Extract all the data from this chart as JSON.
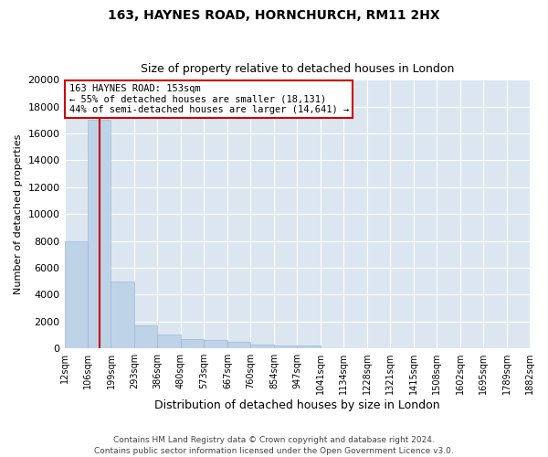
{
  "title1": "163, HAYNES ROAD, HORNCHURCH, RM11 2HX",
  "title2": "Size of property relative to detached houses in London",
  "xlabel": "Distribution of detached houses by size in London",
  "ylabel": "Number of detached properties",
  "footer": "Contains HM Land Registry data © Crown copyright and database right 2024.\nContains public sector information licensed under the Open Government Licence v3.0.",
  "property_size": 153,
  "property_label": "163 HAYNES ROAD: 153sqm",
  "annotation_line1": "← 55% of detached houses are smaller (18,131)",
  "annotation_line2": "44% of semi-detached houses are larger (14,641) →",
  "bar_color": "#bed3e8",
  "bar_edge_color": "#9ab8d8",
  "vline_color": "#cc0000",
  "annotation_box_edge": "#cc0000",
  "annotation_box_face": "#ffffff",
  "background_color": "#dce6f0",
  "bins": [
    "12sqm",
    "106sqm",
    "199sqm",
    "293sqm",
    "386sqm",
    "480sqm",
    "573sqm",
    "667sqm",
    "760sqm",
    "854sqm",
    "947sqm",
    "1041sqm",
    "1134sqm",
    "1228sqm",
    "1321sqm",
    "1415sqm",
    "1508sqm",
    "1602sqm",
    "1695sqm",
    "1789sqm",
    "1882sqm"
  ],
  "bin_edges": [
    12,
    106,
    199,
    293,
    386,
    480,
    573,
    667,
    760,
    854,
    947,
    1041,
    1134,
    1228,
    1321,
    1415,
    1508,
    1602,
    1695,
    1789,
    1882
  ],
  "values": [
    8000,
    17000,
    5000,
    1700,
    1000,
    700,
    600,
    500,
    300,
    200,
    200,
    0,
    0,
    0,
    0,
    0,
    0,
    0,
    0,
    0
  ],
  "ylim": [
    0,
    20000
  ],
  "yticks": [
    0,
    2000,
    4000,
    6000,
    8000,
    10000,
    12000,
    14000,
    16000,
    18000,
    20000
  ]
}
